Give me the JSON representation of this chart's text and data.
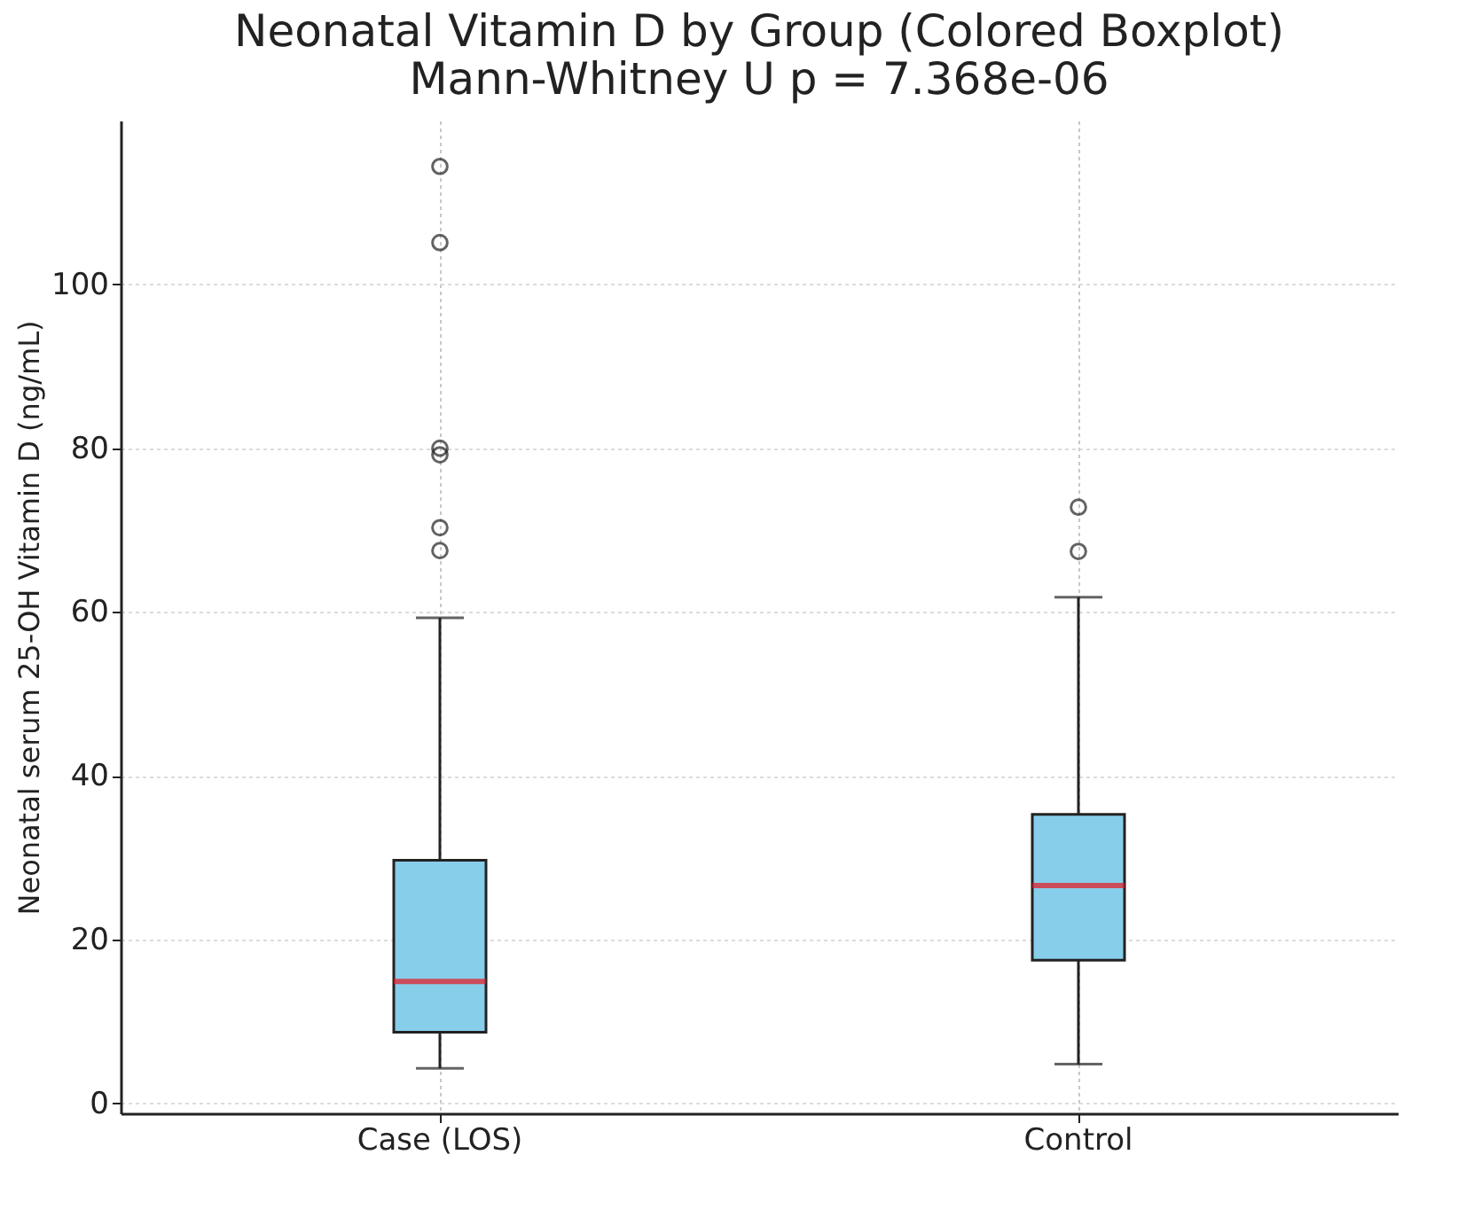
{
  "chart_data": {
    "type": "box",
    "title": "Neonatal Vitamin D by Group (Colored Boxplot)",
    "subtitle": "Mann-Whitney U p = 7.368e-06",
    "ylabel": "Neonatal serum 25-OH Vitamin D (ng/mL)",
    "categories": [
      "Case (LOS)",
      "Control"
    ],
    "series": [
      {
        "color": "#87ceeb",
        "boxes": [
          {
            "low": 4.3,
            "q1": 8.7,
            "median": 14.9,
            "q3": 29.7,
            "high": 59.3,
            "outliers": [
              114.4,
              105.1,
              80,
              79.2,
              70.3,
              67.5
            ]
          },
          {
            "low": 4.8,
            "q1": 17.5,
            "median": 26.6,
            "q3": 35.3,
            "high": 61.8,
            "outliers": [
              72.8,
              67.4
            ]
          }
        ]
      }
    ],
    "ylim": [
      -1.2,
      120
    ],
    "yticks": [
      0,
      20,
      40,
      60,
      80,
      100
    ],
    "grid": true
  }
}
